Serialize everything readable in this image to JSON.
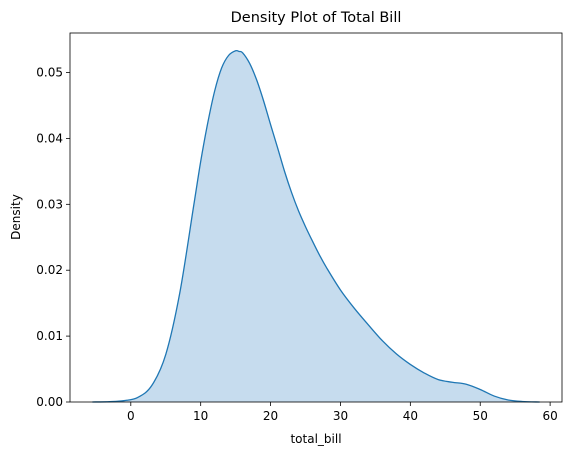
{
  "chart_data": {
    "type": "area",
    "title": "Density Plot of Total Bill",
    "xlabel": "total_bill",
    "ylabel": "Density",
    "xlim": [
      -8.7,
      61.7
    ],
    "ylim": [
      0,
      0.056
    ],
    "x_ticks": [
      0,
      10,
      20,
      30,
      40,
      50,
      60
    ],
    "y_ticks": [
      0.0,
      0.01,
      0.02,
      0.03,
      0.04,
      0.05
    ],
    "y_tick_labels": [
      "0.00",
      "0.01",
      "0.02",
      "0.03",
      "0.04",
      "0.05"
    ],
    "grid": false,
    "legend": "none",
    "line_color": "#1f77b4",
    "fill_color": "#c6dcee",
    "series": [
      {
        "x": [
          -5.5,
          -3,
          -1,
          1,
          3,
          5,
          7,
          9,
          10,
          11,
          12,
          13,
          14,
          15,
          15.5,
          16,
          17,
          18,
          19,
          20,
          21,
          22,
          23,
          24,
          25,
          26,
          27,
          28,
          30,
          32,
          34,
          36,
          38,
          40,
          42,
          44,
          46,
          48,
          50,
          52,
          54,
          56,
          58.5
        ],
        "y": [
          0.0,
          5e-05,
          0.0002,
          0.0007,
          0.0025,
          0.0072,
          0.0165,
          0.0298,
          0.0365,
          0.0423,
          0.0472,
          0.0507,
          0.0526,
          0.0533,
          0.0532,
          0.053,
          0.0514,
          0.0489,
          0.0457,
          0.0421,
          0.0386,
          0.035,
          0.0318,
          0.029,
          0.0266,
          0.0244,
          0.0223,
          0.0204,
          0.017,
          0.0142,
          0.0117,
          0.0093,
          0.0073,
          0.0057,
          0.0044,
          0.0034,
          0.003,
          0.0027,
          0.0019,
          0.0009,
          0.0003,
          8e-05,
          0.0
        ]
      }
    ]
  }
}
